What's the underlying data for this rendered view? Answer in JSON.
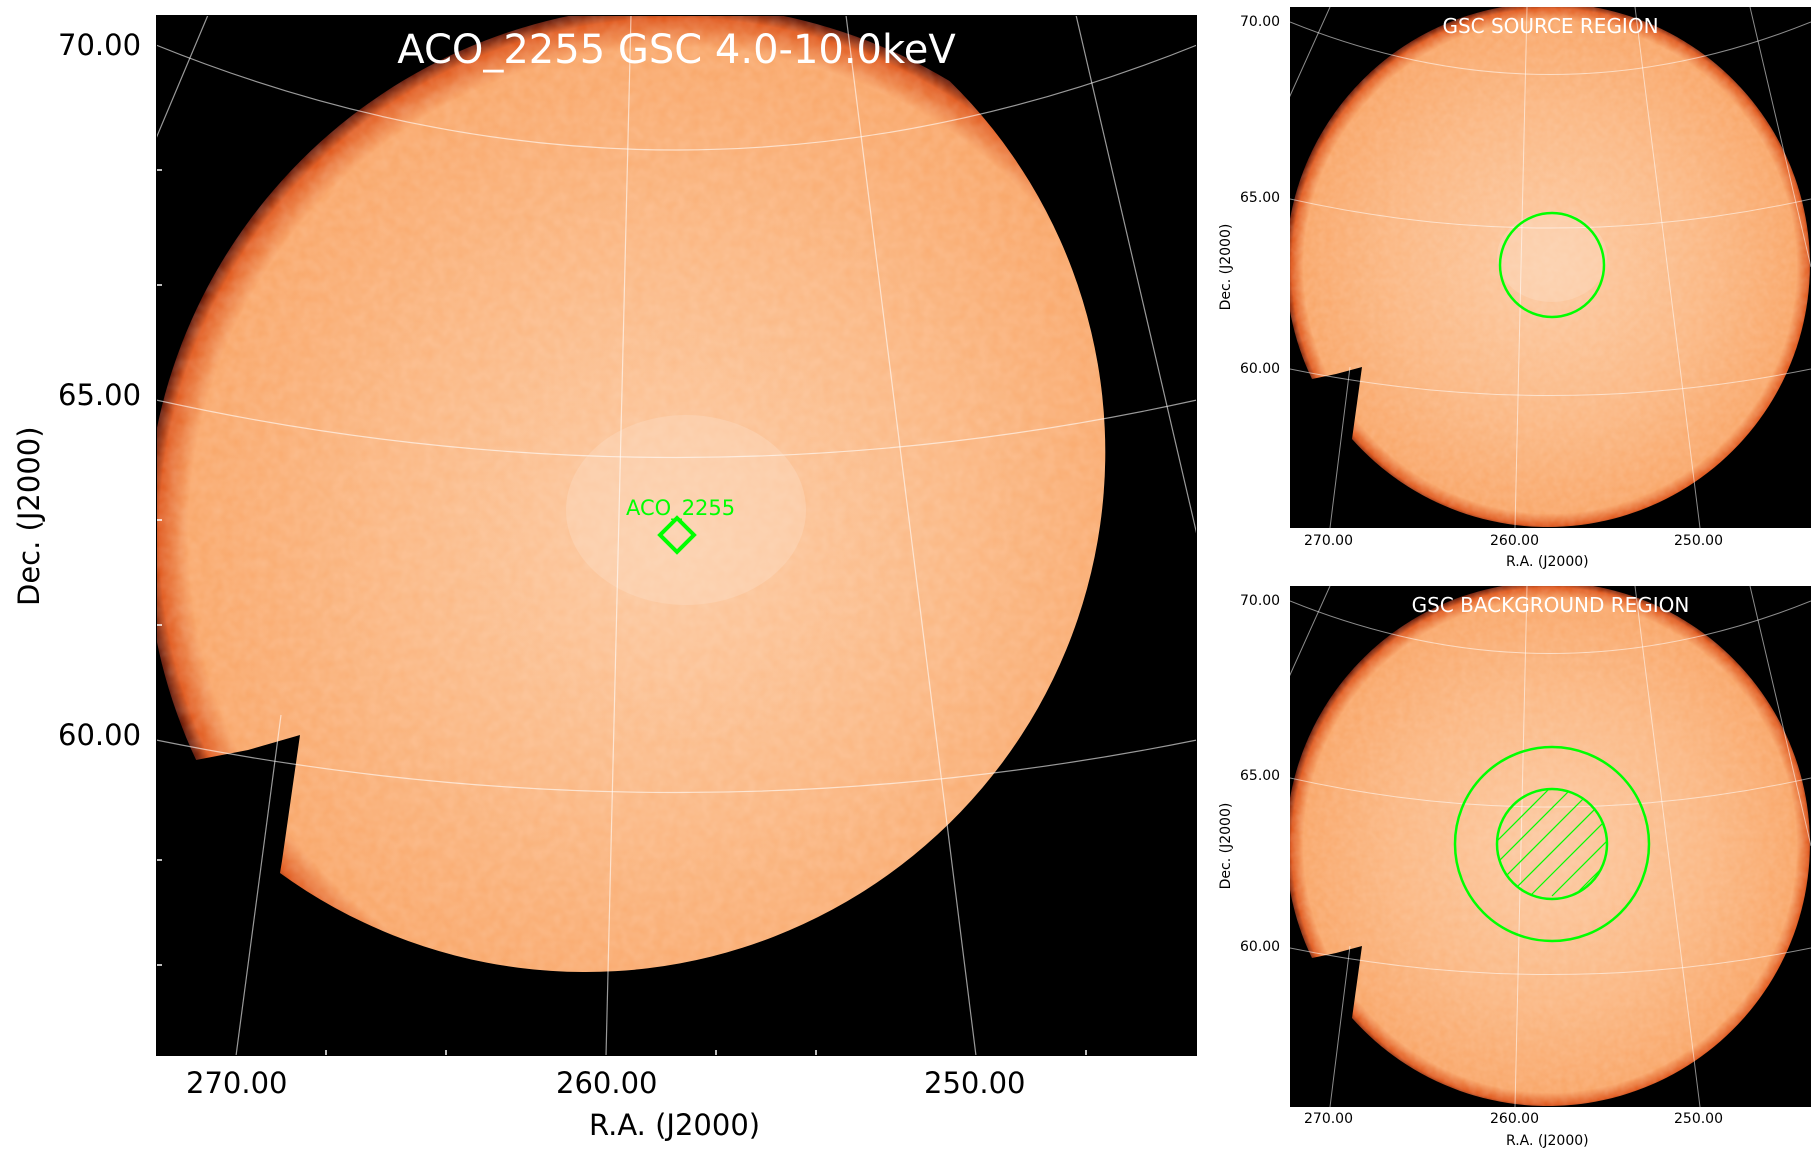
{
  "main": {
    "title": "ACO_2255 GSC 4.0-10.0keV",
    "source_label": "ACO_2255",
    "xlabel": "R.A. (J2000)",
    "ylabel": "Dec. (J2000)",
    "xticks": [
      "270.00",
      "260.00",
      "250.00"
    ],
    "yticks": [
      "70.00",
      "65.00",
      "60.00"
    ]
  },
  "source_panel": {
    "title": "GSC SOURCE REGION",
    "xlabel": "R.A. (J2000)",
    "ylabel": "Dec. (J2000)",
    "xticks": [
      "270.00",
      "260.00",
      "250.00"
    ],
    "yticks": [
      "70.00",
      "65.00",
      "60.00"
    ]
  },
  "background_panel": {
    "title": "GSC BACKGROUND REGION",
    "xlabel": "R.A. (J2000)",
    "ylabel": "Dec. (J2000)",
    "xticks": [
      "270.00",
      "260.00",
      "250.00"
    ],
    "yticks": [
      "70.00",
      "65.00",
      "60.00"
    ]
  },
  "colors": {
    "background": "#000000",
    "map_fill": "#fbb27a",
    "map_edge": "#7a1e00",
    "grid": "#ffffff",
    "region": "#00ff00",
    "title_text": "#ffffff"
  }
}
